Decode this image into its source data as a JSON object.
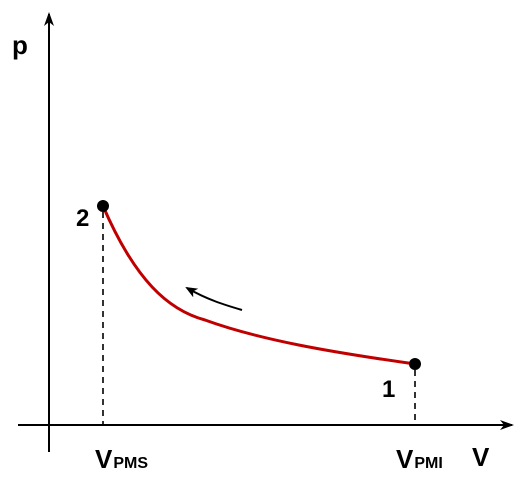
{
  "axes": {
    "y_label": "p",
    "x_label": "V"
  },
  "points": [
    {
      "label": "1"
    },
    {
      "label": "2"
    }
  ],
  "ticks": {
    "vpms": {
      "main": "V",
      "sub": "PMS"
    },
    "vpmi": {
      "main": "V",
      "sub": "PMI"
    }
  },
  "colors": {
    "curve": "#c00000",
    "axis": "#000000",
    "point": "#000000"
  },
  "arrow_direction": "from point 1 toward point 2"
}
